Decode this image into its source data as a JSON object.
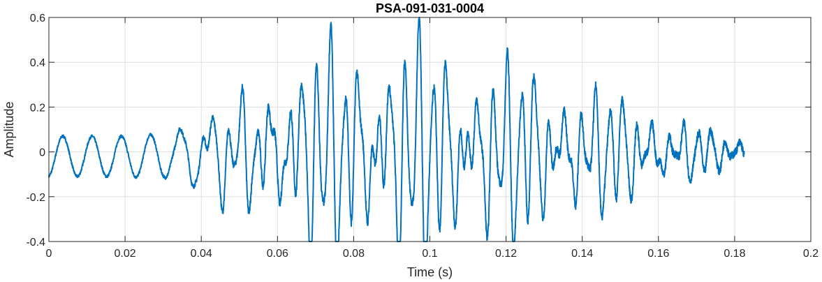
{
  "chart_data": {
    "type": "line",
    "title": "PSA-091-031-0004",
    "xlabel": "Time (s)",
    "ylabel": "Amplitude",
    "xlim": [
      0,
      0.2
    ],
    "ylim": [
      -0.4,
      0.6
    ],
    "xticks": [
      0,
      0.02,
      0.04,
      0.06,
      0.08,
      0.1,
      0.12,
      0.14,
      0.16,
      0.18,
      0.2
    ],
    "xtick_labels": [
      "0",
      "0.02",
      "0.04",
      "0.06",
      "0.08",
      "0.1",
      "0.12",
      "0.14",
      "0.16",
      "0.18",
      "0.2"
    ],
    "yticks": [
      -0.4,
      -0.2,
      0,
      0.2,
      0.4,
      0.6
    ],
    "ytick_labels": [
      "-0.4",
      "-0.2",
      "0",
      "0.2",
      "0.4",
      "0.6"
    ],
    "grid": true,
    "series": [
      {
        "color": "#0072BD",
        "x_start": 0,
        "x_end": 0.1825,
        "offset": -0.02,
        "description_envelope_t": [
          0,
          0.02,
          0.03,
          0.04,
          0.05,
          0.06,
          0.07,
          0.08,
          0.09,
          0.095,
          0.1,
          0.11,
          0.12,
          0.13,
          0.14,
          0.15,
          0.16,
          0.17,
          0.18,
          0.1825
        ],
        "description_envelope_a": [
          0.09,
          0.09,
          0.1,
          0.17,
          0.22,
          0.28,
          0.35,
          0.38,
          0.38,
          0.4,
          0.37,
          0.34,
          0.3,
          0.27,
          0.23,
          0.18,
          0.14,
          0.09,
          0.04,
          0.04
        ],
        "freq_hz": [
          130,
          250,
          300
        ]
      }
    ]
  }
}
